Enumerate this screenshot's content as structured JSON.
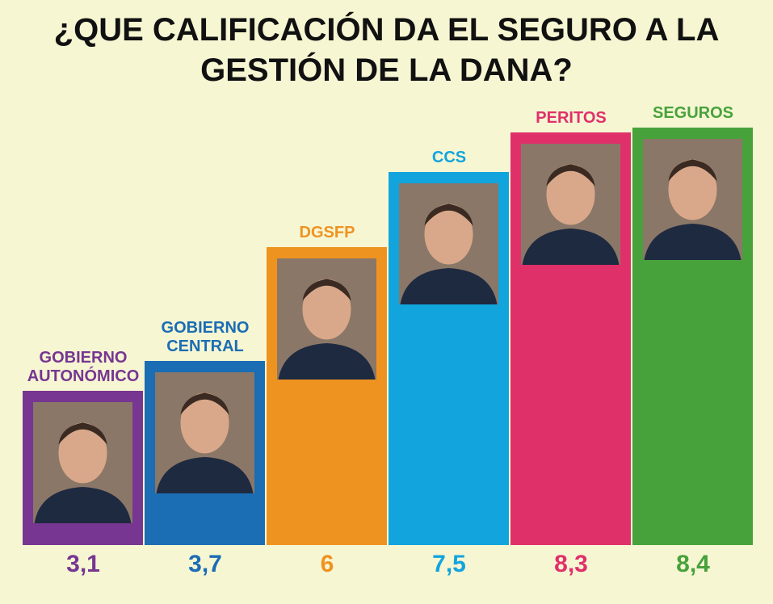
{
  "chart_data": {
    "type": "bar",
    "title": "¿QUE CALIFICACIÓN DA EL SEGURO A LA GESTIÓN DE LA DANA?",
    "categories": [
      "GOBIERNO AUTONÓMICO",
      "GOBIERNO CENTRAL",
      "DGSFP",
      "CCS",
      "PERITOS",
      "SEGUROS"
    ],
    "values": [
      3.1,
      3.7,
      6,
      7.5,
      8.3,
      8.4
    ],
    "value_labels": [
      "3,1",
      "3,7",
      "6",
      "7,5",
      "8,3",
      "8,4"
    ],
    "colors": [
      "#773691",
      "#1b6db4",
      "#ef9320",
      "#12a4dd",
      "#e0306a",
      "#47a23b"
    ],
    "xlabel": "",
    "ylabel": "",
    "ylim": [
      0,
      8.4
    ],
    "grid": false
  }
}
